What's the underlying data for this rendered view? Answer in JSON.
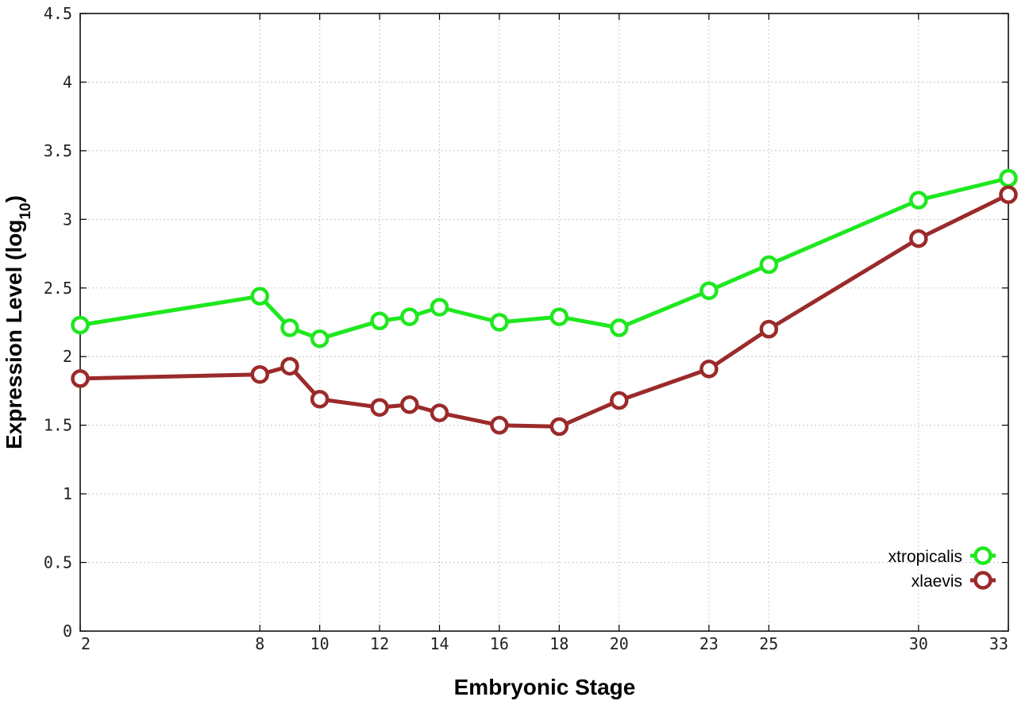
{
  "chart_data": {
    "type": "line",
    "title": "",
    "xlabel": "Embryonic Stage",
    "ylabel_main": "Expression Level (log",
    "ylabel_sub": "10",
    "ylabel_close": ")",
    "xlim": [
      2,
      33
    ],
    "ylim": [
      0,
      4.5
    ],
    "x_ticks": [
      2,
      8,
      10,
      12,
      14,
      16,
      18,
      20,
      23,
      25,
      30,
      33
    ],
    "x_tick_labels": [
      "2",
      "8",
      "10",
      "12",
      "14",
      "16",
      "18",
      "20",
      "23",
      "25",
      "30",
      "33"
    ],
    "y_ticks": [
      0,
      0.5,
      1,
      1.5,
      2,
      2.5,
      3,
      3.5,
      4,
      4.5
    ],
    "y_tick_labels": [
      "0",
      "0.5",
      "1",
      "1.5",
      "2",
      "2.5",
      "3",
      "3.5",
      "4",
      "4.5"
    ],
    "grid": true,
    "legend_position": "bottom-right",
    "x": [
      2,
      8,
      9,
      10,
      12,
      13,
      14,
      16,
      18,
      20,
      23,
      25,
      30,
      33
    ],
    "series": [
      {
        "name": "xtropicalis",
        "color": "#1ee81e",
        "values": [
          2.23,
          2.44,
          2.21,
          2.13,
          2.26,
          2.29,
          2.36,
          2.25,
          2.29,
          2.21,
          2.48,
          2.67,
          3.14,
          3.3
        ]
      },
      {
        "name": "xlaevis",
        "color": "#9b2a2a",
        "values": [
          1.84,
          1.87,
          1.93,
          1.69,
          1.63,
          1.65,
          1.59,
          1.5,
          1.49,
          1.68,
          1.91,
          2.2,
          2.86,
          3.18
        ]
      }
    ]
  }
}
